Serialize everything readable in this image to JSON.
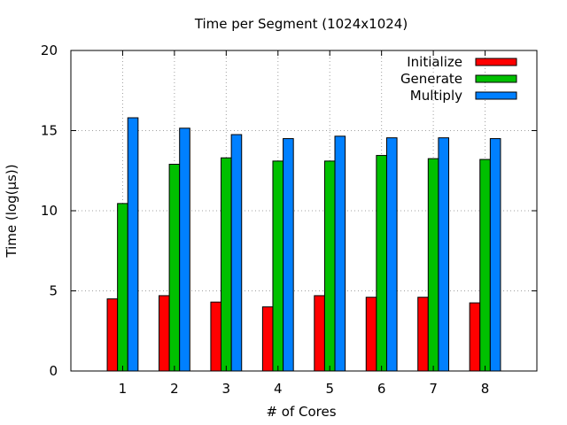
{
  "chart_data": {
    "type": "bar",
    "title": "Time per Segment (1024x1024)",
    "xlabel": "# of Cores",
    "ylabel": "Time (log(µs))",
    "categories": [
      "1",
      "2",
      "3",
      "4",
      "5",
      "6",
      "7",
      "8"
    ],
    "ylim": [
      0,
      20
    ],
    "xlim": [
      0,
      9
    ],
    "yticks": [
      0,
      5,
      10,
      15,
      20
    ],
    "grid": true,
    "legend_position": "top-right",
    "series": [
      {
        "name": "Initialize",
        "color": "#ff0000",
        "values": [
          4.5,
          4.7,
          4.3,
          4.0,
          4.7,
          4.6,
          4.6,
          4.25
        ]
      },
      {
        "name": "Generate",
        "color": "#00c000",
        "values": [
          10.45,
          12.9,
          13.3,
          13.1,
          13.1,
          13.45,
          13.25,
          13.2
        ]
      },
      {
        "name": "Multiply",
        "color": "#0080ff",
        "values": [
          15.8,
          15.15,
          14.75,
          14.5,
          14.65,
          14.55,
          14.55,
          14.5
        ]
      }
    ]
  }
}
